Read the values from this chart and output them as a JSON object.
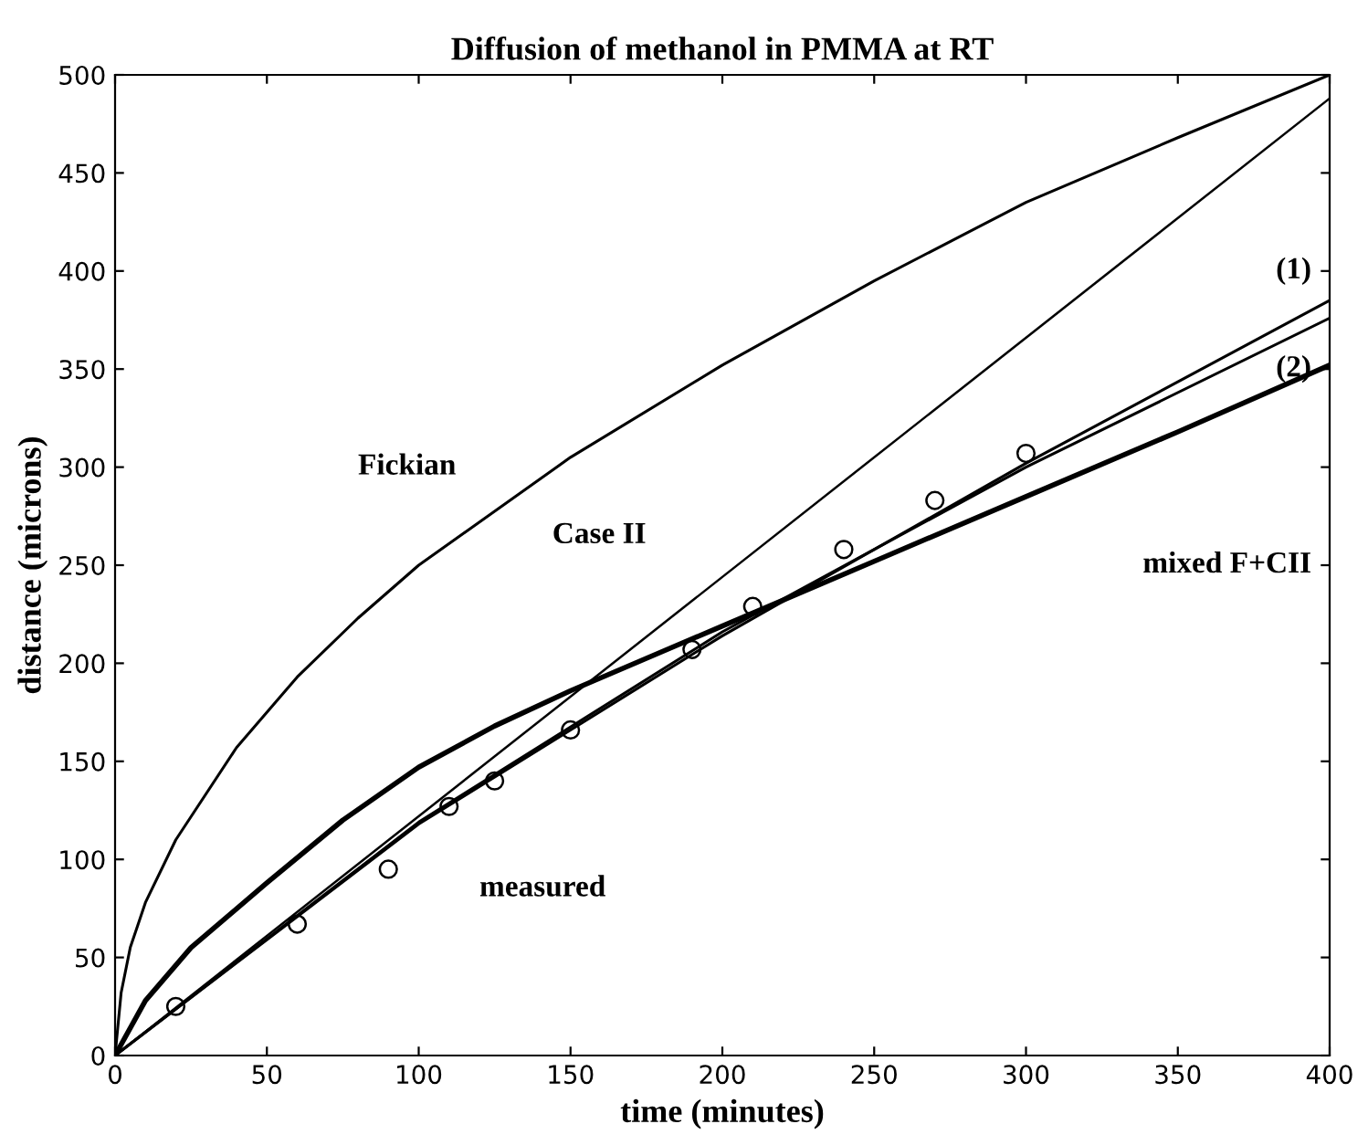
{
  "chart_data": {
    "type": "line",
    "title": "Diffusion of methanol in PMMA at RT",
    "xlabel": "time (minutes)",
    "ylabel": "distance (microns)",
    "xlim": [
      0,
      400
    ],
    "ylim": [
      0,
      500
    ],
    "xticks": [
      0,
      50,
      100,
      150,
      200,
      250,
      300,
      350,
      400
    ],
    "yticks": [
      0,
      50,
      100,
      150,
      200,
      250,
      300,
      350,
      400,
      450,
      500
    ],
    "grid": false,
    "legend": false,
    "marker": "none",
    "line_style": "solid",
    "series": [
      {
        "color": "#000000",
        "x": [
          0,
          2,
          5,
          10,
          20,
          40,
          60,
          80,
          100,
          150,
          200,
          250,
          300,
          350,
          400
        ],
        "values": [
          0,
          32,
          55,
          78,
          110,
          157,
          193,
          223,
          250,
          305,
          352,
          395,
          435,
          468,
          500
        ]
      },
      {
        "color": "#000000",
        "x": [
          0,
          400
        ],
        "values": [
          0,
          488
        ]
      },
      {
        "color": "#000000",
        "x": [
          0,
          10,
          25,
          50,
          75,
          100,
          125,
          150,
          200,
          250,
          300,
          350,
          400
        ],
        "values": [
          0,
          28,
          55,
          88,
          120,
          147,
          168,
          186,
          219,
          252,
          285,
          318,
          352
        ]
      },
      {
        "color": "#000000",
        "x": [
          0,
          100,
          200,
          300,
          400
        ],
        "values": [
          0,
          118,
          214,
          302,
          385
        ]
      },
      {
        "color": "#000000",
        "x": [
          0,
          100,
          200,
          300,
          400
        ],
        "values": [
          0,
          119,
          216,
          300,
          376
        ]
      },
      {
        "type": "scatter",
        "color": "#000000",
        "marker": "circle",
        "x": [
          20,
          60,
          90,
          110,
          125,
          150,
          190,
          210,
          240,
          270,
          300
        ],
        "values": [
          25,
          67,
          95,
          127,
          140,
          166,
          207,
          229,
          258,
          283,
          307
        ]
      }
    ],
    "annotations": [
      "Fickian",
      "Case II",
      "mixed F+CII",
      "(1)",
      "(2)",
      "measured"
    ]
  }
}
